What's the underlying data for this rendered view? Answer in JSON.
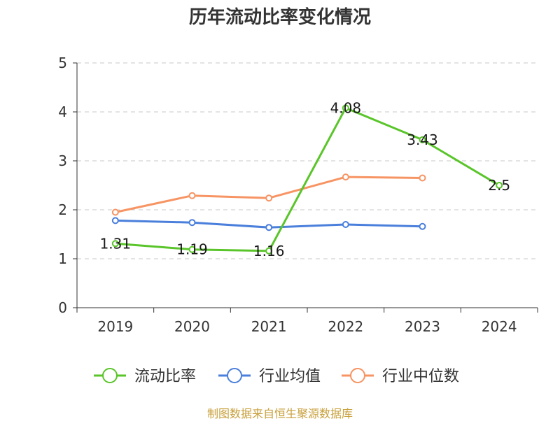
{
  "chart_data": {
    "type": "line",
    "title": "历年流动比率变化情况",
    "categories": [
      "2019",
      "2020",
      "2021",
      "2022",
      "2023",
      "2024"
    ],
    "ylim": [
      0,
      5
    ],
    "yticks": [
      "0",
      "1",
      "2",
      "3",
      "4",
      "5"
    ],
    "grid": true,
    "legend_placement": "bottom",
    "series": [
      {
        "name": "流动比率",
        "color": "#5ac52a",
        "values": [
          1.31,
          1.19,
          1.16,
          4.08,
          3.43,
          2.5
        ],
        "labels": [
          "1.31",
          "1.19",
          "1.16",
          "4.08",
          "3.43",
          "2.5"
        ]
      },
      {
        "name": "行业均值",
        "color": "#4a7fdb",
        "values": [
          1.78,
          1.74,
          1.64,
          1.7,
          1.66,
          null
        ]
      },
      {
        "name": "行业中位数",
        "color": "#f79463",
        "values": [
          1.95,
          2.29,
          2.24,
          2.67,
          2.65,
          null
        ]
      }
    ]
  },
  "source": "制图数据来自恒生聚源数据库"
}
